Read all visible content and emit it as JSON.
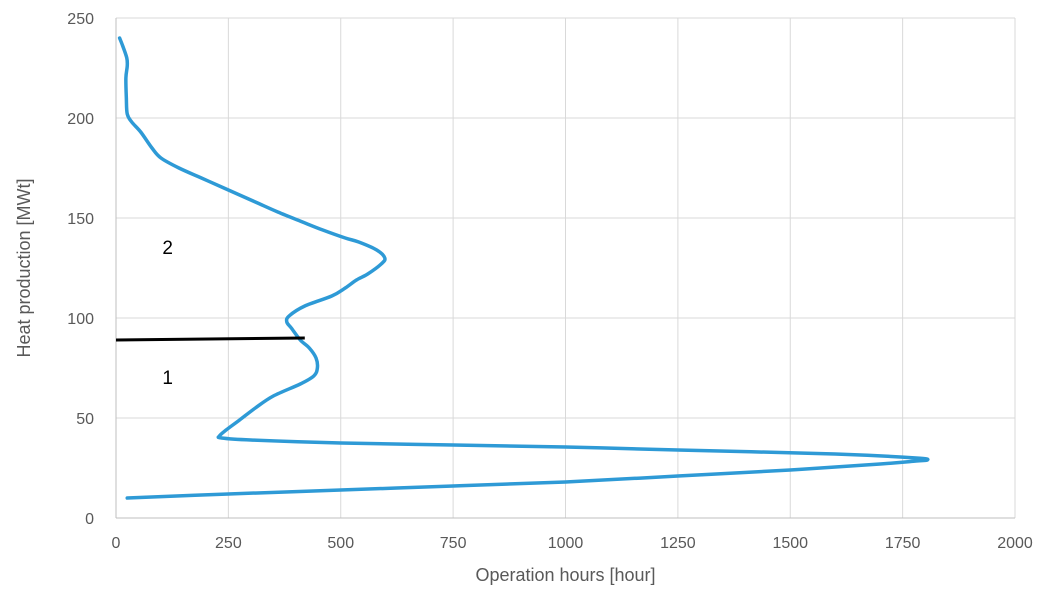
{
  "chart_data": {
    "type": "line",
    "title": "",
    "xlabel": "Operation hours [hour]",
    "ylabel": "Heat production [MWt]",
    "xlim": [
      0,
      2000
    ],
    "ylim": [
      0,
      250
    ],
    "x_ticks": [
      "0",
      "250",
      "500",
      "750",
      "1000",
      "1250",
      "1500",
      "1750",
      "2000"
    ],
    "y_ticks": [
      "0",
      "50",
      "100",
      "150",
      "200",
      "250"
    ],
    "grid": true,
    "colors": {
      "curve": "#2E9AD6",
      "divider": "#000000",
      "grid": "#D9D9D9",
      "axis": "#BFBFBF"
    },
    "series": [
      {
        "points": [
          [
            25,
            10
          ],
          [
            250,
            12
          ],
          [
            500,
            14
          ],
          [
            750,
            16
          ],
          [
            1000,
            18
          ],
          [
            1250,
            21
          ],
          [
            1500,
            24
          ],
          [
            1700,
            27
          ],
          [
            1780,
            28.5
          ],
          [
            1805,
            29
          ],
          [
            1780,
            30
          ],
          [
            1600,
            32
          ],
          [
            1250,
            34
          ],
          [
            1000,
            35.5
          ],
          [
            750,
            36.5
          ],
          [
            500,
            37.5
          ],
          [
            300,
            39
          ],
          [
            235,
            40
          ],
          [
            230,
            41
          ],
          [
            245,
            44
          ],
          [
            275,
            49
          ],
          [
            310,
            55
          ],
          [
            350,
            61
          ],
          [
            410,
            67
          ],
          [
            440,
            71
          ],
          [
            448,
            75
          ],
          [
            445,
            80
          ],
          [
            430,
            85
          ],
          [
            410,
            89
          ],
          [
            390,
            95
          ],
          [
            380,
            98
          ],
          [
            385,
            101
          ],
          [
            420,
            106
          ],
          [
            480,
            111
          ],
          [
            510,
            115
          ],
          [
            535,
            119
          ],
          [
            560,
            122
          ],
          [
            590,
            127
          ],
          [
            598,
            130
          ],
          [
            580,
            134
          ],
          [
            540,
            138
          ],
          [
            510,
            140
          ],
          [
            460,
            144
          ],
          [
            415,
            148
          ],
          [
            360,
            153
          ],
          [
            310,
            158
          ],
          [
            240,
            165
          ],
          [
            190,
            170
          ],
          [
            140,
            175
          ],
          [
            100,
            180
          ],
          [
            80,
            185
          ],
          [
            55,
            193
          ],
          [
            35,
            198
          ],
          [
            25,
            202
          ],
          [
            23,
            210
          ],
          [
            22,
            220
          ],
          [
            25,
            226
          ],
          [
            24,
            230
          ],
          [
            15,
            236
          ],
          [
            8,
            240
          ]
        ]
      },
      {
        "points": [
          [
            0,
            89
          ],
          [
            420,
            90
          ]
        ]
      }
    ],
    "annotations": [
      {
        "text": "2",
        "x": 115,
        "y": 132
      },
      {
        "text": "1",
        "x": 115,
        "y": 67
      }
    ]
  }
}
